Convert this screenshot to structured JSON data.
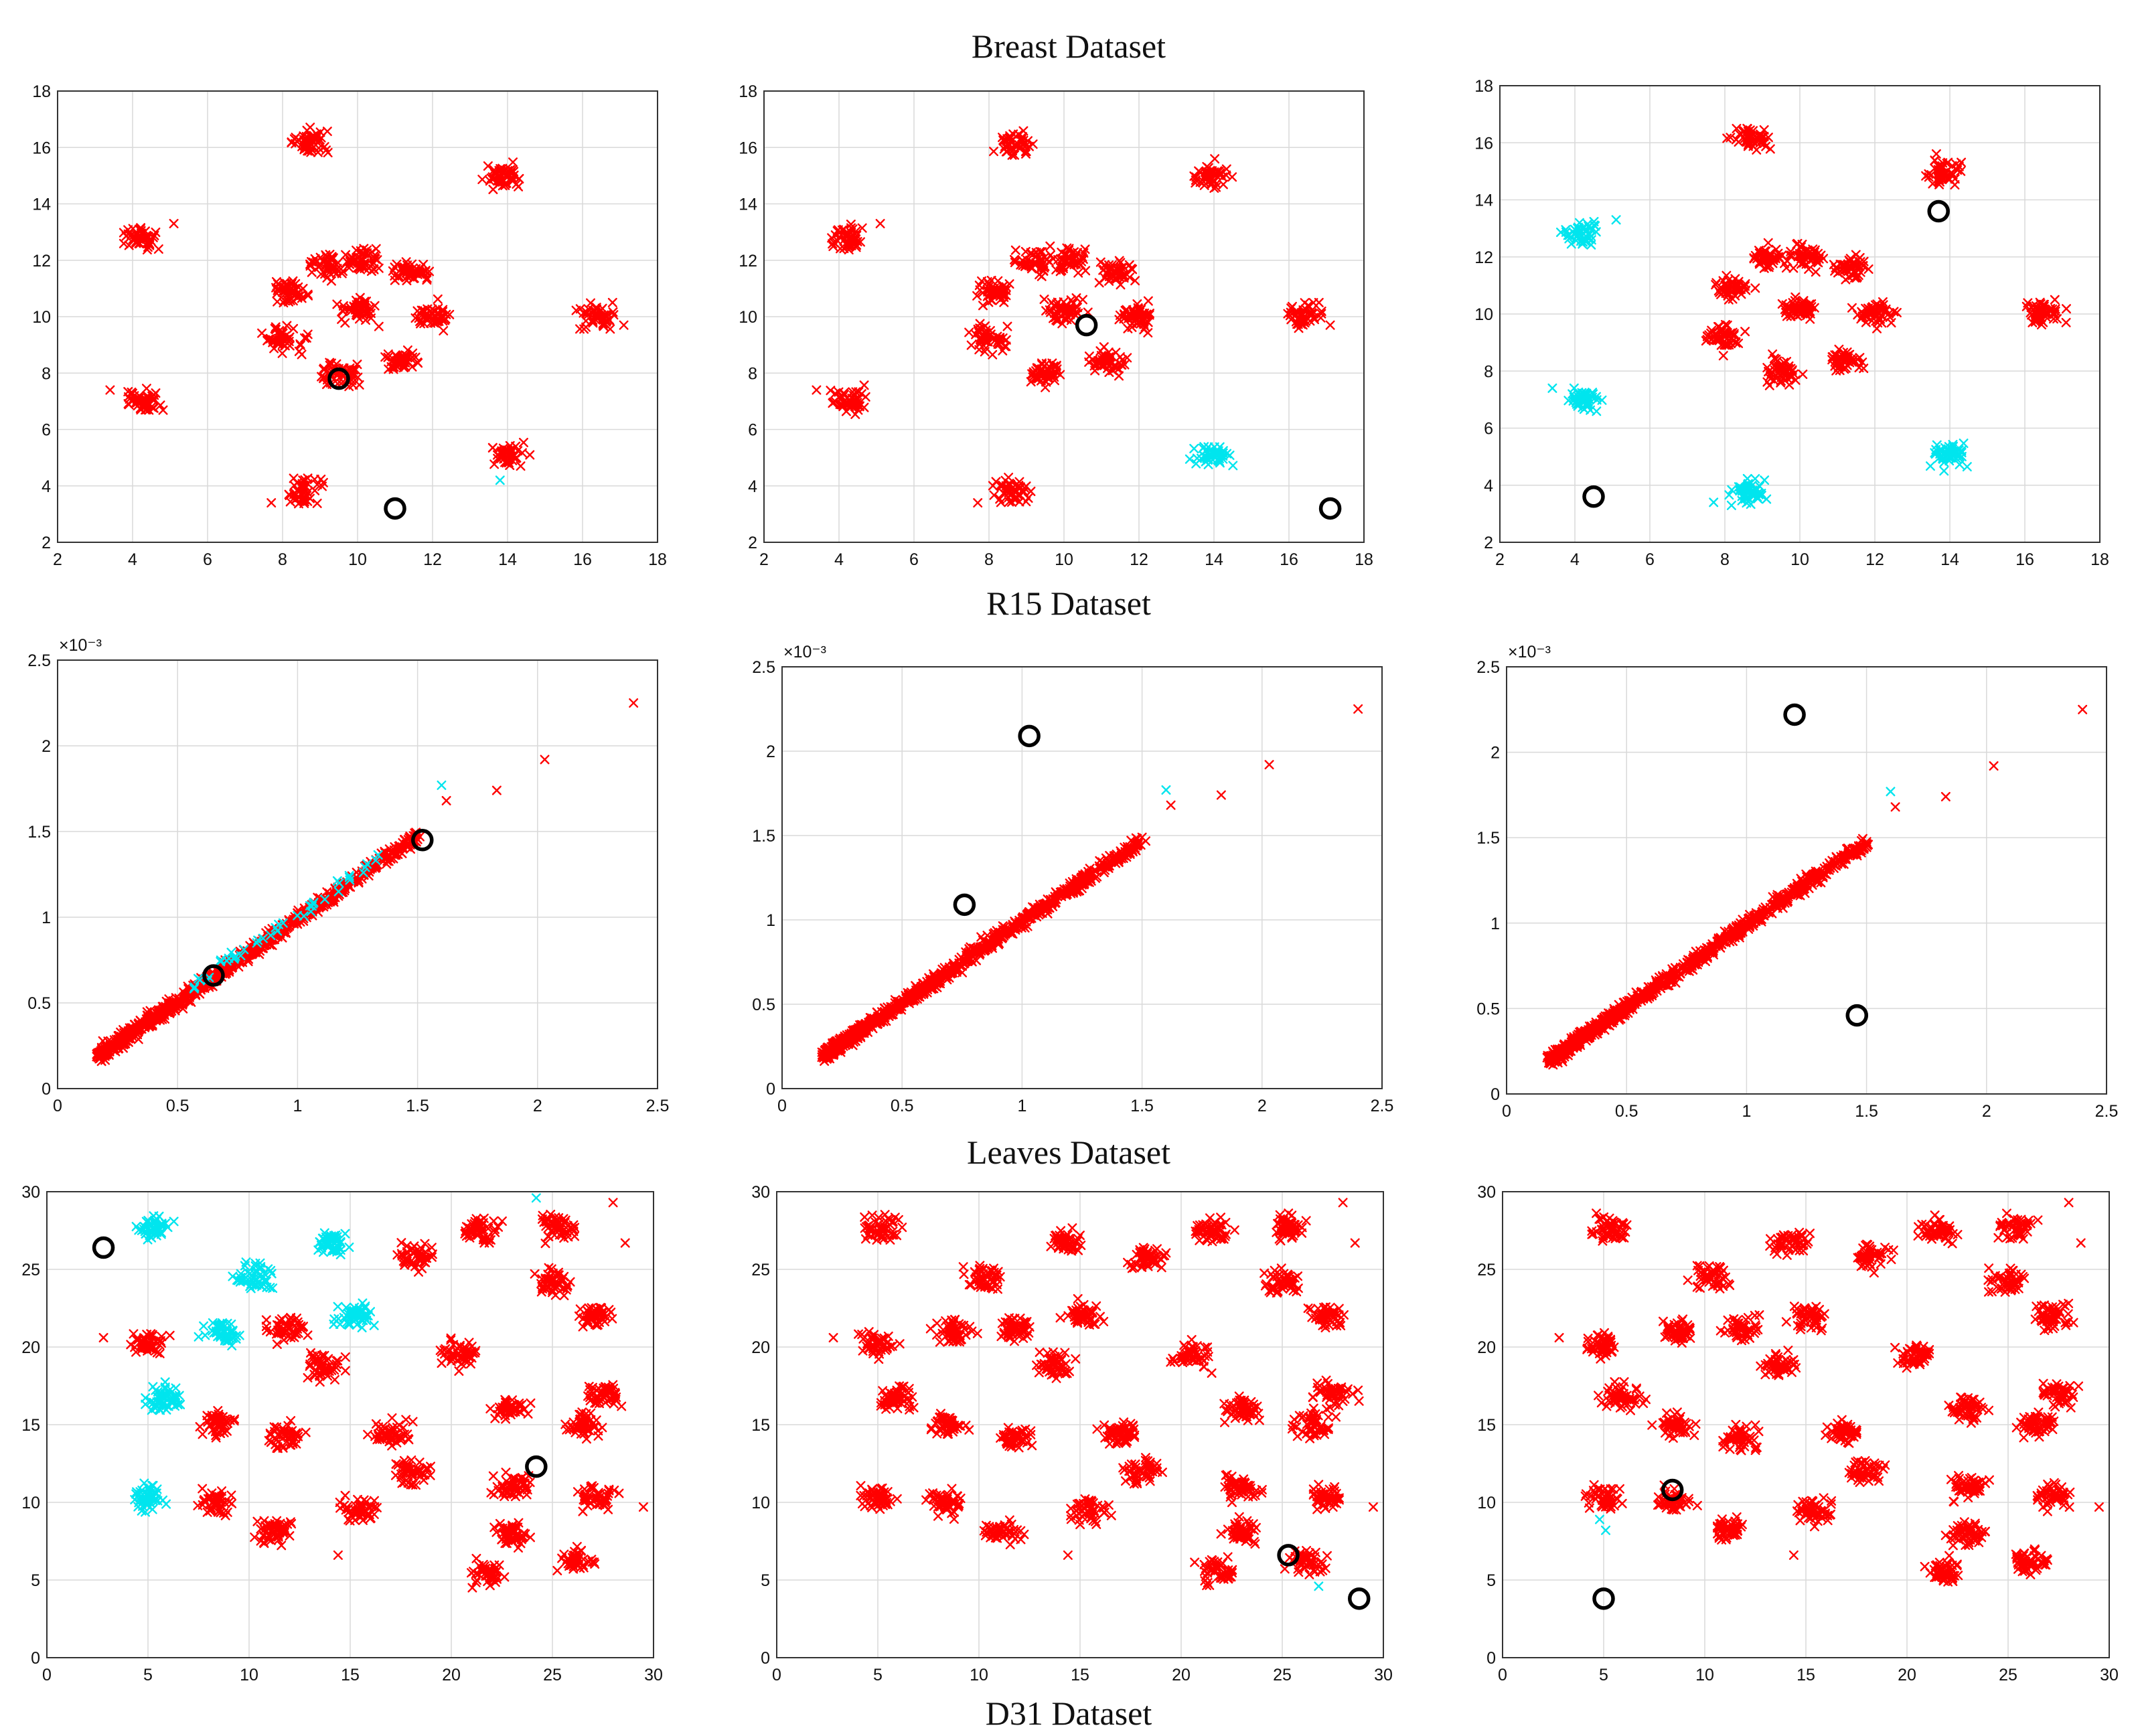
{
  "figure": {
    "colors": {
      "primary": "#ff0000",
      "secondary": "#00e5ee",
      "center": "#000000"
    },
    "row_titles": [
      "Breast Dataset",
      "R15 Dataset",
      "Leaves Dataset",
      "D31 Dataset"
    ]
  },
  "chart_data": [
    {
      "type": "scatter",
      "dataset": "R15",
      "panel": 1,
      "xlim": [
        2,
        18
      ],
      "ylim": [
        2,
        18
      ],
      "xticks": [
        "2",
        "4",
        "6",
        "8",
        "10",
        "12",
        "14",
        "16",
        "18"
      ],
      "yticks": [
        "2",
        "4",
        "6",
        "8",
        "10",
        "12",
        "14",
        "16",
        "18"
      ],
      "centers": [
        [
          9.5,
          7.8
        ],
        [
          11,
          3.2
        ]
      ],
      "clusters": [
        [
          4.2,
          12.8,
          "a"
        ],
        [
          4.3,
          7.0,
          "a"
        ],
        [
          8.7,
          16.2,
          "a"
        ],
        [
          8.6,
          3.8,
          "a"
        ],
        [
          13.9,
          15.0,
          "a"
        ],
        [
          14.0,
          5.1,
          "a"
        ],
        [
          16.4,
          10.0,
          "a"
        ],
        [
          8.2,
          10.9,
          "a"
        ],
        [
          8.0,
          9.2,
          "a"
        ],
        [
          9.2,
          11.9,
          "a"
        ],
        [
          10.2,
          12.0,
          "a"
        ],
        [
          11.4,
          11.6,
          "a"
        ],
        [
          10.0,
          10.2,
          "a"
        ],
        [
          12.0,
          10.0,
          "a"
        ],
        [
          9.5,
          8.0,
          "a"
        ],
        [
          11.2,
          8.4,
          "a"
        ]
      ],
      "outliers": [
        [
          5.1,
          13.3,
          "a"
        ],
        [
          3.4,
          7.4,
          "a"
        ],
        [
          7.7,
          3.4,
          "a"
        ],
        [
          17.1,
          9.7,
          "a"
        ],
        [
          16.8,
          10.5,
          "a"
        ],
        [
          13.8,
          4.2,
          "b"
        ]
      ]
    },
    {
      "type": "scatter",
      "dataset": "R15",
      "panel": 2,
      "xlim": [
        2,
        18
      ],
      "ylim": [
        2,
        18
      ],
      "xticks": [
        "2",
        "4",
        "6",
        "8",
        "10",
        "12",
        "14",
        "16",
        "18"
      ],
      "yticks": [
        "2",
        "4",
        "6",
        "8",
        "10",
        "12",
        "14",
        "16",
        "18"
      ],
      "centers": [
        [
          10.6,
          9.7
        ],
        [
          17.1,
          3.2
        ]
      ],
      "clusters": [
        [
          4.2,
          12.8,
          "a"
        ],
        [
          4.3,
          7.0,
          "a"
        ],
        [
          8.7,
          16.2,
          "a"
        ],
        [
          8.6,
          3.8,
          "a"
        ],
        [
          13.9,
          15.0,
          "a"
        ],
        [
          14.0,
          5.1,
          "b"
        ],
        [
          16.4,
          10.0,
          "a"
        ],
        [
          8.2,
          10.9,
          "a"
        ],
        [
          8.0,
          9.2,
          "a"
        ],
        [
          9.2,
          11.9,
          "a"
        ],
        [
          10.2,
          12.0,
          "a"
        ],
        [
          11.4,
          11.6,
          "a"
        ],
        [
          10.0,
          10.2,
          "a"
        ],
        [
          12.0,
          10.0,
          "a"
        ],
        [
          9.5,
          8.0,
          "a"
        ],
        [
          11.2,
          8.4,
          "a"
        ]
      ],
      "outliers": [
        [
          5.1,
          13.3,
          "a"
        ],
        [
          3.4,
          7.4,
          "a"
        ],
        [
          7.7,
          3.4,
          "a"
        ],
        [
          17.1,
          9.7,
          "a"
        ],
        [
          16.8,
          10.5,
          "a"
        ]
      ]
    },
    {
      "type": "scatter",
      "dataset": "R15",
      "panel": 3,
      "xlim": [
        2,
        18
      ],
      "ylim": [
        2,
        18
      ],
      "xticks": [
        "2",
        "4",
        "6",
        "8",
        "10",
        "12",
        "14",
        "16",
        "18"
      ],
      "yticks": [
        "2",
        "4",
        "6",
        "8",
        "10",
        "12",
        "14",
        "16",
        "18"
      ],
      "centers": [
        [
          13.7,
          13.6
        ],
        [
          4.5,
          3.6
        ]
      ],
      "clusters": [
        [
          4.2,
          12.8,
          "b"
        ],
        [
          4.3,
          7.0,
          "b"
        ],
        [
          8.7,
          16.2,
          "a"
        ],
        [
          8.6,
          3.8,
          "b"
        ],
        [
          13.9,
          15.0,
          "a"
        ],
        [
          14.0,
          5.1,
          "b"
        ],
        [
          16.4,
          10.0,
          "a"
        ],
        [
          8.2,
          10.9,
          "a"
        ],
        [
          8.0,
          9.2,
          "a"
        ],
        [
          9.2,
          11.9,
          "a"
        ],
        [
          10.2,
          12.0,
          "a"
        ],
        [
          11.4,
          11.6,
          "a"
        ],
        [
          10.0,
          10.2,
          "a"
        ],
        [
          12.0,
          10.0,
          "a"
        ],
        [
          9.5,
          8.0,
          "a"
        ],
        [
          11.2,
          8.4,
          "a"
        ]
      ],
      "outliers": [
        [
          5.1,
          13.3,
          "b"
        ],
        [
          3.4,
          7.4,
          "b"
        ],
        [
          7.7,
          3.4,
          "b"
        ],
        [
          17.1,
          9.7,
          "a"
        ],
        [
          16.8,
          10.5,
          "a"
        ]
      ]
    },
    {
      "type": "scatter",
      "dataset": "Leaves",
      "panel": 1,
      "xlim": [
        0,
        2.5
      ],
      "ylim": [
        0,
        2.5
      ],
      "y_scale_label": "×10⁻³",
      "xticks": [
        "0",
        "0.5",
        "1",
        "1.5",
        "2",
        "2.5"
      ],
      "yticks": [
        "0",
        "0.5",
        "1",
        "1.5",
        "2",
        "2.5"
      ],
      "centers": [
        [
          0.65,
          0.66
        ],
        [
          1.52,
          1.45
        ]
      ],
      "trend": {
        "from": [
          0.18,
          0.2
        ],
        "to": [
          1.5,
          1.47
        ]
      },
      "highlight_range": [
        0.55,
        1.4
      ],
      "outliers": [
        [
          1.6,
          1.77,
          "b"
        ],
        [
          1.62,
          1.68,
          "a"
        ],
        [
          1.83,
          1.74,
          "a"
        ],
        [
          2.03,
          1.92,
          "a"
        ],
        [
          2.4,
          2.25,
          "a"
        ]
      ]
    },
    {
      "type": "scatter",
      "dataset": "Leaves",
      "panel": 2,
      "xlim": [
        0,
        2.5
      ],
      "ylim": [
        0,
        2.5
      ],
      "y_scale_label": "×10⁻³",
      "xticks": [
        "0",
        "0.5",
        "1",
        "1.5",
        "2",
        "2.5"
      ],
      "yticks": [
        "0",
        "0.5",
        "1",
        "1.5",
        "2",
        "2.5"
      ],
      "centers": [
        [
          1.03,
          2.09
        ],
        [
          0.76,
          1.09
        ]
      ],
      "trend": {
        "from": [
          0.18,
          0.2
        ],
        "to": [
          1.5,
          1.47
        ]
      },
      "outliers": [
        [
          1.6,
          1.77,
          "b"
        ],
        [
          1.62,
          1.68,
          "a"
        ],
        [
          1.83,
          1.74,
          "a"
        ],
        [
          2.03,
          1.92,
          "a"
        ],
        [
          2.4,
          2.25,
          "a"
        ]
      ]
    },
    {
      "type": "scatter",
      "dataset": "Leaves",
      "panel": 3,
      "xlim": [
        0,
        2.5
      ],
      "ylim": [
        0,
        2.5
      ],
      "y_scale_label": "×10⁻³",
      "xticks": [
        "0",
        "0.5",
        "1",
        "1.5",
        "2",
        "2.5"
      ],
      "yticks": [
        "0",
        "0.5",
        "1",
        "1.5",
        "2",
        "2.5"
      ],
      "centers": [
        [
          1.2,
          2.22
        ],
        [
          1.46,
          0.46
        ]
      ],
      "trend": {
        "from": [
          0.18,
          0.2
        ],
        "to": [
          1.5,
          1.47
        ]
      },
      "outliers": [
        [
          1.6,
          1.77,
          "b"
        ],
        [
          1.62,
          1.68,
          "a"
        ],
        [
          1.83,
          1.74,
          "a"
        ],
        [
          2.03,
          1.92,
          "a"
        ],
        [
          2.4,
          2.25,
          "a"
        ]
      ]
    },
    {
      "type": "scatter",
      "dataset": "D31",
      "panel": 1,
      "xlim": [
        0,
        30
      ],
      "ylim": [
        0,
        30
      ],
      "xticks": [
        "0",
        "5",
        "10",
        "15",
        "20",
        "25",
        "30"
      ],
      "yticks": [
        "0",
        "5",
        "10",
        "15",
        "20",
        "25",
        "30"
      ],
      "centers": [
        [
          2.8,
          26.4
        ],
        [
          24.2,
          12.3
        ]
      ],
      "clusters": [
        [
          5.3,
          27.7,
          "b"
        ],
        [
          10.3,
          24.5,
          "b"
        ],
        [
          14.2,
          26.7,
          "b"
        ],
        [
          8.7,
          21.0,
          "b"
        ],
        [
          15.2,
          22.0,
          "b"
        ],
        [
          5.9,
          16.8,
          "b"
        ],
        [
          5.0,
          10.3,
          "b"
        ],
        [
          4.9,
          20.2,
          "a"
        ],
        [
          11.8,
          21.2,
          "a"
        ],
        [
          18.3,
          25.8,
          "a"
        ],
        [
          21.5,
          27.5,
          "a"
        ],
        [
          25.3,
          27.7,
          "a"
        ],
        [
          25.0,
          24.2,
          "a"
        ],
        [
          27.2,
          22.0,
          "a"
        ],
        [
          20.5,
          19.5,
          "a"
        ],
        [
          13.7,
          18.8,
          "a"
        ],
        [
          27.5,
          17.0,
          "a"
        ],
        [
          23.0,
          16.0,
          "a"
        ],
        [
          26.5,
          15.0,
          "a"
        ],
        [
          17.0,
          14.5,
          "a"
        ],
        [
          8.5,
          15.0,
          "a"
        ],
        [
          11.8,
          14.2,
          "a"
        ],
        [
          18.0,
          12.0,
          "a"
        ],
        [
          23.0,
          11.0,
          "a"
        ],
        [
          27.2,
          10.4,
          "a"
        ],
        [
          8.4,
          10.0,
          "a"
        ],
        [
          15.5,
          9.5,
          "a"
        ],
        [
          11.2,
          8.2,
          "a"
        ],
        [
          23.0,
          8.0,
          "a"
        ],
        [
          21.8,
          5.5,
          "a"
        ],
        [
          26.2,
          6.2,
          "a"
        ]
      ],
      "outliers": [
        [
          2.8,
          20.6,
          "a"
        ],
        [
          28.0,
          29.3,
          "a"
        ],
        [
          29.5,
          9.7,
          "a"
        ],
        [
          28.6,
          26.7,
          "a"
        ],
        [
          14.4,
          6.6,
          "a"
        ],
        [
          24.2,
          29.6,
          "b"
        ]
      ]
    },
    {
      "type": "scatter",
      "dataset": "D31",
      "panel": 2,
      "xlim": [
        0,
        30
      ],
      "ylim": [
        0,
        30
      ],
      "xticks": [
        "0",
        "5",
        "10",
        "15",
        "20",
        "25",
        "30"
      ],
      "yticks": [
        "0",
        "5",
        "10",
        "15",
        "20",
        "25",
        "30"
      ],
      "centers": [
        [
          25.3,
          6.6
        ],
        [
          28.8,
          3.8
        ]
      ],
      "clusters": [
        [
          5.3,
          27.7,
          "a"
        ],
        [
          10.3,
          24.5,
          "a"
        ],
        [
          14.2,
          26.7,
          "a"
        ],
        [
          8.7,
          21.0,
          "a"
        ],
        [
          15.2,
          22.0,
          "a"
        ],
        [
          5.9,
          16.8,
          "a"
        ],
        [
          5.0,
          10.3,
          "a"
        ],
        [
          4.9,
          20.2,
          "a"
        ],
        [
          11.8,
          21.2,
          "a"
        ],
        [
          18.3,
          25.8,
          "a"
        ],
        [
          21.5,
          27.5,
          "a"
        ],
        [
          25.3,
          27.7,
          "a"
        ],
        [
          25.0,
          24.2,
          "a"
        ],
        [
          27.2,
          22.0,
          "a"
        ],
        [
          20.5,
          19.5,
          "a"
        ],
        [
          13.7,
          18.8,
          "a"
        ],
        [
          27.5,
          17.0,
          "a"
        ],
        [
          23.0,
          16.0,
          "a"
        ],
        [
          26.5,
          15.0,
          "a"
        ],
        [
          17.0,
          14.5,
          "a"
        ],
        [
          8.5,
          15.0,
          "a"
        ],
        [
          11.8,
          14.2,
          "a"
        ],
        [
          18.0,
          12.0,
          "a"
        ],
        [
          23.0,
          11.0,
          "a"
        ],
        [
          27.2,
          10.4,
          "a"
        ],
        [
          8.4,
          10.0,
          "a"
        ],
        [
          15.5,
          9.5,
          "a"
        ],
        [
          11.2,
          8.2,
          "a"
        ],
        [
          23.0,
          8.0,
          "a"
        ],
        [
          21.8,
          5.5,
          "a"
        ],
        [
          26.2,
          6.2,
          "a"
        ]
      ],
      "outliers": [
        [
          2.8,
          20.6,
          "a"
        ],
        [
          28.0,
          29.3,
          "a"
        ],
        [
          29.5,
          9.7,
          "a"
        ],
        [
          28.6,
          26.7,
          "a"
        ],
        [
          14.4,
          6.6,
          "a"
        ],
        [
          26.8,
          4.6,
          "b"
        ]
      ]
    },
    {
      "type": "scatter",
      "dataset": "D31",
      "panel": 3,
      "xlim": [
        0,
        30
      ],
      "ylim": [
        0,
        30
      ],
      "xticks": [
        "0",
        "5",
        "10",
        "15",
        "20",
        "25",
        "30"
      ],
      "yticks": [
        "0",
        "5",
        "10",
        "15",
        "20",
        "25",
        "30"
      ],
      "centers": [
        [
          8.4,
          10.8
        ],
        [
          5.0,
          3.8
        ]
      ],
      "clusters": [
        [
          5.3,
          27.7,
          "a"
        ],
        [
          10.3,
          24.5,
          "a"
        ],
        [
          14.2,
          26.7,
          "a"
        ],
        [
          8.7,
          21.0,
          "a"
        ],
        [
          15.2,
          22.0,
          "a"
        ],
        [
          5.9,
          16.8,
          "a"
        ],
        [
          5.0,
          10.3,
          "a"
        ],
        [
          4.9,
          20.2,
          "a"
        ],
        [
          11.8,
          21.2,
          "a"
        ],
        [
          18.3,
          25.8,
          "a"
        ],
        [
          21.5,
          27.5,
          "a"
        ],
        [
          25.3,
          27.7,
          "a"
        ],
        [
          25.0,
          24.2,
          "a"
        ],
        [
          27.2,
          22.0,
          "a"
        ],
        [
          20.5,
          19.5,
          "a"
        ],
        [
          13.7,
          18.8,
          "a"
        ],
        [
          27.5,
          17.0,
          "a"
        ],
        [
          23.0,
          16.0,
          "a"
        ],
        [
          26.5,
          15.0,
          "a"
        ],
        [
          17.0,
          14.5,
          "a"
        ],
        [
          8.5,
          15.0,
          "a"
        ],
        [
          11.8,
          14.2,
          "a"
        ],
        [
          18.0,
          12.0,
          "a"
        ],
        [
          23.0,
          11.0,
          "a"
        ],
        [
          27.2,
          10.4,
          "a"
        ],
        [
          8.4,
          10.0,
          "a"
        ],
        [
          15.5,
          9.5,
          "a"
        ],
        [
          11.2,
          8.2,
          "a"
        ],
        [
          23.0,
          8.0,
          "a"
        ],
        [
          21.8,
          5.5,
          "a"
        ],
        [
          26.2,
          6.2,
          "a"
        ]
      ],
      "outliers": [
        [
          2.8,
          20.6,
          "a"
        ],
        [
          28.0,
          29.3,
          "a"
        ],
        [
          29.5,
          9.7,
          "a"
        ],
        [
          28.6,
          26.7,
          "a"
        ],
        [
          14.4,
          6.6,
          "a"
        ],
        [
          4.8,
          8.9,
          "b"
        ],
        [
          5.1,
          8.2,
          "b"
        ]
      ]
    }
  ]
}
